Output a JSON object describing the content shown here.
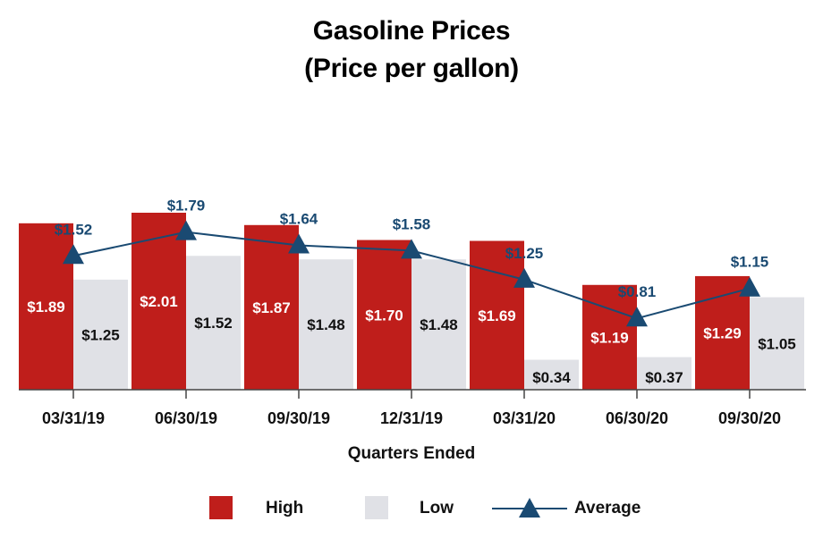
{
  "chart_data": {
    "type": "bar",
    "title": "Gasoline Prices",
    "subtitle": "(Price per gallon)",
    "xlabel": "Quarters Ended",
    "ylabel": "",
    "ylim": [
      0,
      2.2
    ],
    "grid": false,
    "categories": [
      "03/31/19",
      "06/30/19",
      "09/30/19",
      "12/31/19",
      "03/31/20",
      "06/30/20",
      "09/30/20"
    ],
    "series": [
      {
        "name": "High",
        "kind": "bar",
        "color": "#bf1e1b",
        "values": [
          1.89,
          2.01,
          1.87,
          1.7,
          1.69,
          1.19,
          1.29
        ],
        "labels": [
          "$1.89",
          "$2.01",
          "$1.87",
          "$1.70",
          "$1.69",
          "$1.19",
          "$1.29"
        ]
      },
      {
        "name": "Low",
        "kind": "bar",
        "color": "#e0e1e6",
        "values": [
          1.25,
          1.52,
          1.48,
          1.48,
          0.34,
          0.37,
          1.05
        ],
        "labels": [
          "$1.25",
          "$1.52",
          "$1.48",
          "$1.48",
          "$0.34",
          "$0.37",
          "$1.05"
        ]
      },
      {
        "name": "Average",
        "kind": "line",
        "color": "#1a4a72",
        "values": [
          1.52,
          1.79,
          1.64,
          1.58,
          1.25,
          0.81,
          1.15
        ],
        "labels": [
          "$1.52",
          "$1.79",
          "$1.64",
          "$1.58",
          "$1.25",
          "$0.81",
          "$1.15"
        ]
      }
    ],
    "legend": {
      "position": "bottom"
    }
  }
}
